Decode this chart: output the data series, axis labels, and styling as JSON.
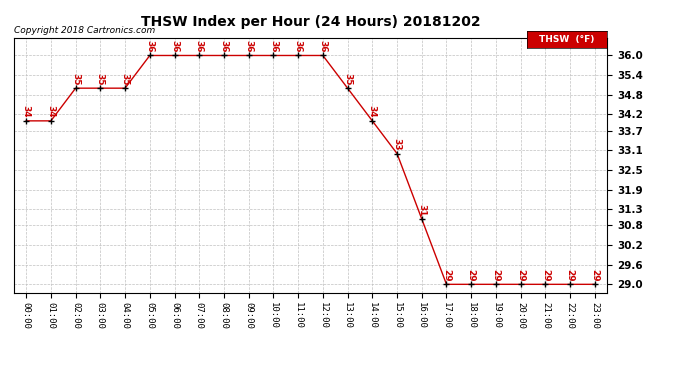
{
  "title": "THSW Index per Hour (24 Hours) 20181202",
  "copyright": "Copyright 2018 Cartronics.com",
  "legend_label": "THSW  (°F)",
  "x_labels": [
    "00:00",
    "01:00",
    "02:00",
    "03:00",
    "04:00",
    "05:00",
    "06:00",
    "07:00",
    "08:00",
    "09:00",
    "10:00",
    "11:00",
    "12:00",
    "13:00",
    "14:00",
    "15:00",
    "16:00",
    "17:00",
    "18:00",
    "19:00",
    "20:00",
    "21:00",
    "22:00",
    "23:00"
  ],
  "hours": [
    0,
    1,
    2,
    3,
    4,
    5,
    6,
    7,
    8,
    9,
    10,
    11,
    12,
    13,
    14,
    15,
    16,
    17,
    18,
    19,
    20,
    21,
    22,
    23
  ],
  "values": [
    34,
    34,
    35,
    35,
    35,
    36,
    36,
    36,
    36,
    36,
    36,
    36,
    36,
    35,
    34,
    33,
    31,
    29,
    29,
    29,
    29,
    29,
    29,
    29
  ],
  "ylim_min": 28.75,
  "ylim_max": 36.55,
  "yticks": [
    29.0,
    29.6,
    30.2,
    30.8,
    31.3,
    31.9,
    32.5,
    33.1,
    33.7,
    34.2,
    34.8,
    35.4,
    36.0
  ],
  "line_color": "#cc0000",
  "marker_color": "#000000",
  "bg_color": "#ffffff",
  "grid_color": "#c0c0c0",
  "title_color": "#000000",
  "copyright_color": "#000000",
  "label_color": "#cc0000",
  "legend_bg": "#cc0000",
  "legend_fg": "#ffffff"
}
